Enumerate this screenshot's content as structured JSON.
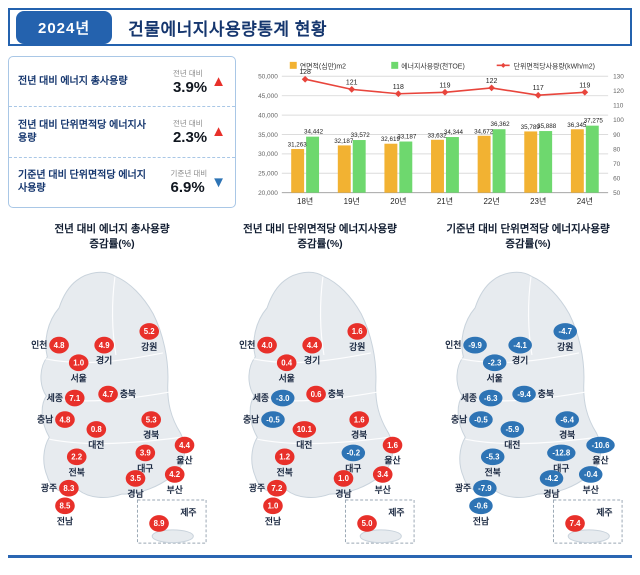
{
  "header": {
    "year_badge": "2024년",
    "title": "건물에너지사용량통계 현황"
  },
  "kpis": [
    {
      "label": "전년 대비 에너지 총사용량",
      "sub": "전년 대비",
      "value": "3.9%",
      "direction": "up"
    },
    {
      "label": "전년 대비 단위면적당 에너지사용량",
      "sub": "전년 대비",
      "value": "2.3%",
      "direction": "up"
    },
    {
      "label": "기준년 대비 단위면적당 에너지사용량",
      "sub": "기준년 대비",
      "value": "6.9%",
      "direction": "down"
    }
  ],
  "colors": {
    "accent": "#2462ae",
    "navy": "#15366e",
    "up": "#e8302a",
    "down": "#2e74b5",
    "bar_area": "#f2b232",
    "bar_energy": "#6ed86e",
    "line": "#e8453c",
    "map_fill": "#e7ebef",
    "map_stroke": "#c9d3dc",
    "grid": "#dcdcdc"
  },
  "chart_data": [
    {
      "type": "bar",
      "subtype": "combo-bar-line",
      "categories": [
        "18년",
        "19년",
        "20년",
        "21년",
        "22년",
        "23년",
        "24년"
      ],
      "series": [
        {
          "name": "연면적(십만)m2",
          "type": "bar",
          "axis": "left",
          "values": [
            31263,
            32187,
            32619,
            33632,
            34672,
            35789,
            36345
          ]
        },
        {
          "name": "에너지사용량(천TOE)",
          "type": "bar",
          "axis": "left",
          "values": [
            34442,
            33572,
            33187,
            34344,
            36362,
            35888,
            37275
          ]
        },
        {
          "name": "단위면적당사용량(kWh/m2)",
          "type": "line",
          "axis": "right",
          "values": [
            128,
            121,
            118,
            119,
            122,
            117,
            119
          ]
        }
      ],
      "left_axis": {
        "min": 20000,
        "max": 50000,
        "ticks": [
          "50,000",
          "45,000",
          "40,000",
          "35,000",
          "30,000",
          "25,000",
          "20,000"
        ]
      },
      "right_axis": {
        "min": 50,
        "max": 130,
        "ticks": [
          "130",
          "120",
          "110",
          "100",
          "90",
          "80",
          "70",
          "60",
          "50"
        ]
      },
      "legend_position": "top",
      "grid": true
    },
    {
      "map": true,
      "type": "table",
      "title_lines": [
        "전년 대비 에너지 총사용량",
        "증감률(%)"
      ],
      "regions": [
        {
          "name": "인천",
          "value": "4.8",
          "dir": "up"
        },
        {
          "name": "서울",
          "value": "1.0",
          "dir": "up"
        },
        {
          "name": "경기",
          "value": "4.9",
          "dir": "up"
        },
        {
          "name": "강원",
          "value": "5.2",
          "dir": "up"
        },
        {
          "name": "세종",
          "value": "7.1",
          "dir": "up"
        },
        {
          "name": "충북",
          "value": "4.7",
          "dir": "up"
        },
        {
          "name": "충남",
          "value": "4.8",
          "dir": "up"
        },
        {
          "name": "대전",
          "value": "0.8",
          "dir": "up"
        },
        {
          "name": "경북",
          "value": "5.3",
          "dir": "up"
        },
        {
          "name": "대구",
          "value": "3.9",
          "dir": "up"
        },
        {
          "name": "울산",
          "value": "4.4",
          "dir": "up"
        },
        {
          "name": "전북",
          "value": "2.2",
          "dir": "up"
        },
        {
          "name": "경남",
          "value": "3.5",
          "dir": "up"
        },
        {
          "name": "부산",
          "value": "4.2",
          "dir": "up"
        },
        {
          "name": "광주",
          "value": "8.3",
          "dir": "up"
        },
        {
          "name": "전남",
          "value": "8.5",
          "dir": "up"
        },
        {
          "name": "제주",
          "value": "8.9",
          "dir": "up"
        }
      ]
    },
    {
      "map": true,
      "type": "table",
      "title_lines": [
        "전년 대비 단위면적당 에너지사용량",
        "증감률(%)"
      ],
      "regions": [
        {
          "name": "인천",
          "value": "4.0",
          "dir": "up"
        },
        {
          "name": "서울",
          "value": "0.4",
          "dir": "up"
        },
        {
          "name": "경기",
          "value": "4.4",
          "dir": "up"
        },
        {
          "name": "강원",
          "value": "1.6",
          "dir": "up"
        },
        {
          "name": "세종",
          "value": "-3.0",
          "dir": "down"
        },
        {
          "name": "충북",
          "value": "0.6",
          "dir": "up"
        },
        {
          "name": "충남",
          "value": "-0.5",
          "dir": "down"
        },
        {
          "name": "대전",
          "value": "10.1",
          "dir": "up"
        },
        {
          "name": "경북",
          "value": "1.6",
          "dir": "up"
        },
        {
          "name": "대구",
          "value": "-0.2",
          "dir": "down"
        },
        {
          "name": "울산",
          "value": "1.6",
          "dir": "up"
        },
        {
          "name": "전북",
          "value": "1.2",
          "dir": "up"
        },
        {
          "name": "경남",
          "value": "1.0",
          "dir": "up"
        },
        {
          "name": "부산",
          "value": "3.4",
          "dir": "up"
        },
        {
          "name": "광주",
          "value": "7.2",
          "dir": "up"
        },
        {
          "name": "전남",
          "value": "1.0",
          "dir": "up"
        },
        {
          "name": "제주",
          "value": "5.0",
          "dir": "up"
        }
      ]
    },
    {
      "map": true,
      "type": "table",
      "title_lines": [
        "기준년 대비 단위면적당 에너지사용량",
        "증감률(%)"
      ],
      "regions": [
        {
          "name": "인천",
          "value": "-9.9",
          "dir": "down"
        },
        {
          "name": "서울",
          "value": "-2.3",
          "dir": "down"
        },
        {
          "name": "경기",
          "value": "-4.1",
          "dir": "down"
        },
        {
          "name": "강원",
          "value": "-4.7",
          "dir": "down"
        },
        {
          "name": "세종",
          "value": "-6.3",
          "dir": "down"
        },
        {
          "name": "충북",
          "value": "-9.4",
          "dir": "down"
        },
        {
          "name": "충남",
          "value": "-0.5",
          "dir": "down"
        },
        {
          "name": "대전",
          "value": "-5.9",
          "dir": "down"
        },
        {
          "name": "경북",
          "value": "-6.4",
          "dir": "down"
        },
        {
          "name": "대구",
          "value": "-12.8",
          "dir": "down"
        },
        {
          "name": "울산",
          "value": "-10.6",
          "dir": "down"
        },
        {
          "name": "전북",
          "value": "-5.3",
          "dir": "down"
        },
        {
          "name": "경남",
          "value": "-4.2",
          "dir": "down"
        },
        {
          "name": "부산",
          "value": "-0.4",
          "dir": "down"
        },
        {
          "name": "광주",
          "value": "-7.9",
          "dir": "down"
        },
        {
          "name": "전남",
          "value": "-0.6",
          "dir": "down"
        },
        {
          "name": "제주",
          "value": "7.4",
          "dir": "up"
        }
      ]
    }
  ]
}
